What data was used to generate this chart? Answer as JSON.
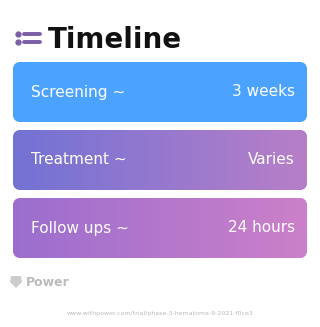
{
  "title": "Timeline",
  "title_fontsize": 20,
  "title_color": "#111111",
  "icon_color": "#7b5ea7",
  "background_color": "#ffffff",
  "rows": [
    {
      "label": "Screening ~",
      "value": "3 weeks",
      "color_left": "#4ca3ff",
      "color_right": "#4ca3ff"
    },
    {
      "label": "Treatment ~",
      "value": "Varies",
      "color_left": "#7272d4",
      "color_right": "#b87fc8"
    },
    {
      "label": "Follow ups ~",
      "value": "24 hours",
      "color_left": "#9b6ecf",
      "color_right": "#cc80c8"
    }
  ],
  "watermark_text": "Power",
  "url_text": "www.withpower.com/trial/phase-3-hematoma-9-2021-f0ce3",
  "text_color_white": "#ffffff",
  "text_fontsize": 11,
  "value_fontsize": 11
}
